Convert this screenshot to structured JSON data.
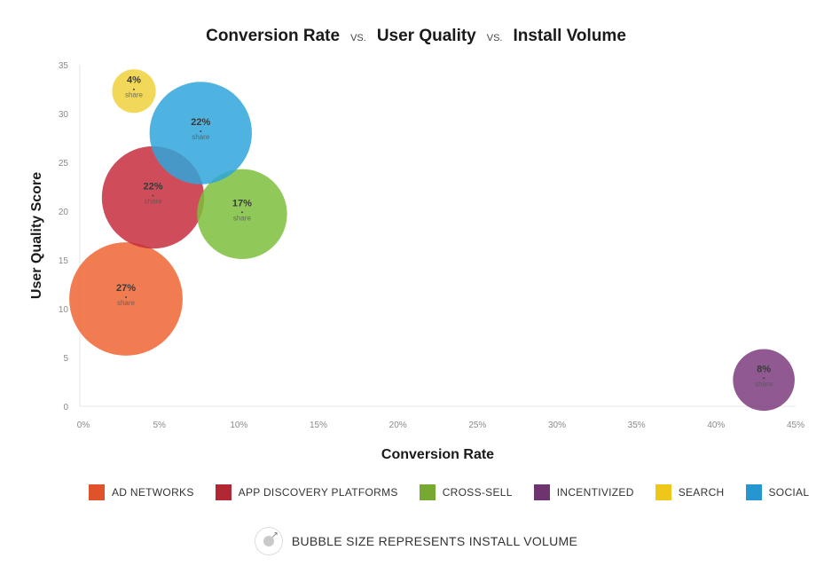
{
  "title": {
    "part1": "Conversion Rate",
    "vs1": "VS.",
    "part2": "User Quality",
    "vs2": "VS.",
    "part3": "Install Volume"
  },
  "chart_data": {
    "type": "scatter",
    "subtype": "bubble",
    "xlabel": "Conversion Rate",
    "ylabel": "User Quality Score",
    "xlim": [
      0,
      45
    ],
    "ylim": [
      0,
      35
    ],
    "x_ticks": [
      "0%",
      "5%",
      "10%",
      "15%",
      "20%",
      "25%",
      "30%",
      "35%",
      "40%",
      "45%"
    ],
    "y_ticks": [
      "0",
      "5",
      "10",
      "15",
      "20",
      "25",
      "30",
      "35"
    ],
    "grid": false,
    "series": [
      {
        "name": "AD NETWORKS",
        "color": "#ef6534",
        "x": 2.9,
        "y": 11.0,
        "share": 27,
        "label": "27%",
        "sub": "share"
      },
      {
        "name": "APP DISCOVERY PLATFORMS",
        "color": "#c72e3d",
        "x": 4.6,
        "y": 21.4,
        "share": 22,
        "label": "22%",
        "sub": "share"
      },
      {
        "name": "CROSS-SELL",
        "color": "#7dbf3c",
        "x": 10.2,
        "y": 19.7,
        "share": 17,
        "label": "17%",
        "sub": "share"
      },
      {
        "name": "INCENTIVIZED",
        "color": "#7c3c7f",
        "x": 43.0,
        "y": 2.7,
        "share": 8,
        "label": "8%",
        "sub": "share"
      },
      {
        "name": "SEARCH",
        "color": "#f0d13b",
        "x": 3.4,
        "y": 32.3,
        "share": 4,
        "label": "4%",
        "sub": "share"
      },
      {
        "name": "SOCIAL",
        "color": "#2fa6db",
        "x": 7.6,
        "y": 28.0,
        "share": 22,
        "label": "22%",
        "sub": "share"
      }
    ]
  },
  "legend": [
    {
      "label": "AD NETWORKS",
      "color": "#e0532a"
    },
    {
      "label": "APP DISCOVERY PLATFORMS",
      "color": "#b22734"
    },
    {
      "label": "CROSS-SELL",
      "color": "#76a832"
    },
    {
      "label": "INCENTIVIZED",
      "color": "#6d3470"
    },
    {
      "label": "SEARCH",
      "color": "#eec718"
    },
    {
      "label": "SOCIAL",
      "color": "#2596cf"
    }
  ],
  "note": {
    "text": "BUBBLE SIZE REPRESENTS INSTALL VOLUME",
    "icon": "bubble-size-icon"
  }
}
